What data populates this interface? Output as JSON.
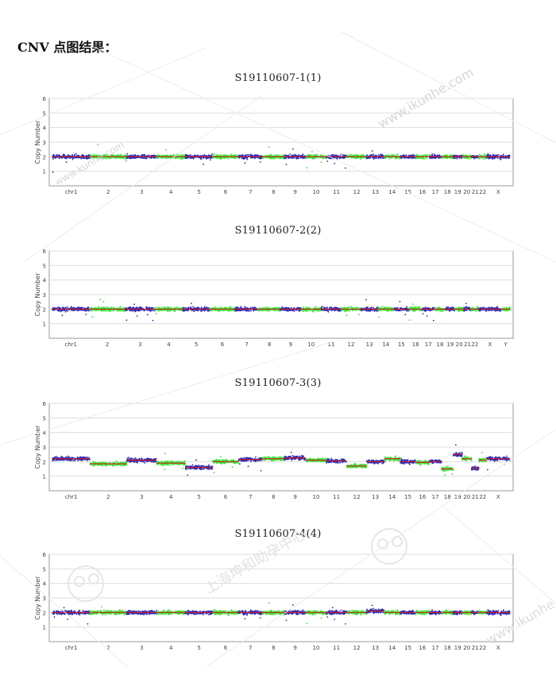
{
  "heading": "CNV 点图结果：",
  "watermark": {
    "texts": [
      "www.ikunhe.com",
      "上海坤和助孕中心",
      "www.ikunhe.com",
      "www.kunhe.com"
    ],
    "color": "#c8c8c8"
  },
  "colors": {
    "blue": "#2b2bb8",
    "green": "#33e833",
    "red": "#d81e1e",
    "grid": "#dddddd",
    "frame": "#999999"
  },
  "chart_data": [
    {
      "type": "scatter",
      "title": "S19110607-1(1)",
      "ylabel": "Copy Number",
      "ylim": [
        0,
        6
      ],
      "yticks": [
        1,
        2,
        3,
        4,
        5,
        6
      ],
      "chromosomes": [
        "chr1",
        "2",
        "3",
        "4",
        "5",
        "6",
        "7",
        "8",
        "9",
        "10",
        "11",
        "12",
        "13",
        "14",
        "15",
        "16",
        "17",
        "18",
        "19",
        "20",
        "21",
        "22",
        "X"
      ],
      "segments": [
        {
          "chr": "chr1",
          "value": 2.0,
          "color": "blue"
        },
        {
          "chr": "2",
          "value": 2.0,
          "color": "green"
        },
        {
          "chr": "3",
          "value": 2.0,
          "color": "blue"
        },
        {
          "chr": "4",
          "value": 2.0,
          "color": "green"
        },
        {
          "chr": "5",
          "value": 2.0,
          "color": "blue"
        },
        {
          "chr": "6",
          "value": 2.0,
          "color": "green"
        },
        {
          "chr": "7",
          "value": 2.0,
          "color": "blue"
        },
        {
          "chr": "8",
          "value": 2.0,
          "color": "green"
        },
        {
          "chr": "9",
          "value": 2.0,
          "color": "blue"
        },
        {
          "chr": "10",
          "value": 2.0,
          "color": "green"
        },
        {
          "chr": "11",
          "value": 2.0,
          "color": "blue"
        },
        {
          "chr": "12",
          "value": 2.0,
          "color": "green"
        },
        {
          "chr": "13",
          "value": 2.0,
          "color": "blue"
        },
        {
          "chr": "14",
          "value": 2.0,
          "color": "green"
        },
        {
          "chr": "15",
          "value": 2.0,
          "color": "blue"
        },
        {
          "chr": "16",
          "value": 2.0,
          "color": "green"
        },
        {
          "chr": "17",
          "value": 2.0,
          "color": "blue"
        },
        {
          "chr": "18",
          "value": 2.0,
          "color": "green"
        },
        {
          "chr": "19",
          "value": 2.0,
          "color": "blue"
        },
        {
          "chr": "20",
          "value": 2.0,
          "color": "green"
        },
        {
          "chr": "21",
          "value": 2.0,
          "color": "blue"
        },
        {
          "chr": "22",
          "value": 2.0,
          "color": "green"
        },
        {
          "chr": "X",
          "value": 2.0,
          "color": "blue"
        }
      ]
    },
    {
      "type": "scatter",
      "title": "S19110607-2(2)",
      "ylabel": "Copy Number",
      "ylim": [
        0,
        6
      ],
      "yticks": [
        1,
        2,
        3,
        4,
        5,
        6
      ],
      "chromosomes": [
        "chr1",
        "2",
        "3",
        "4",
        "5",
        "6",
        "7",
        "8",
        "9",
        "10",
        "11",
        "12",
        "13",
        "14",
        "15",
        "16",
        "17",
        "18",
        "19",
        "20",
        "21",
        "22",
        "X",
        "Y"
      ],
      "segments": [
        {
          "chr": "chr1",
          "value": 2.0,
          "color": "blue"
        },
        {
          "chr": "2",
          "value": 2.0,
          "color": "green"
        },
        {
          "chr": "3",
          "value": 2.0,
          "color": "blue"
        },
        {
          "chr": "4",
          "value": 2.0,
          "color": "green"
        },
        {
          "chr": "5",
          "value": 2.0,
          "color": "blue"
        },
        {
          "chr": "6",
          "value": 2.0,
          "color": "green"
        },
        {
          "chr": "7",
          "value": 2.0,
          "color": "blue"
        },
        {
          "chr": "8",
          "value": 2.0,
          "color": "green"
        },
        {
          "chr": "9",
          "value": 2.0,
          "color": "blue"
        },
        {
          "chr": "10",
          "value": 2.0,
          "color": "green"
        },
        {
          "chr": "11",
          "value": 2.0,
          "color": "blue"
        },
        {
          "chr": "12",
          "value": 2.0,
          "color": "green"
        },
        {
          "chr": "13",
          "value": 2.0,
          "color": "blue"
        },
        {
          "chr": "14",
          "value": 2.0,
          "color": "green"
        },
        {
          "chr": "15",
          "value": 2.0,
          "color": "blue"
        },
        {
          "chr": "16",
          "value": 2.0,
          "color": "green"
        },
        {
          "chr": "17",
          "value": 2.0,
          "color": "blue"
        },
        {
          "chr": "18",
          "value": 2.0,
          "color": "green"
        },
        {
          "chr": "19",
          "value": 2.0,
          "color": "blue"
        },
        {
          "chr": "20",
          "value": 2.0,
          "color": "green"
        },
        {
          "chr": "21",
          "value": 2.0,
          "color": "blue"
        },
        {
          "chr": "22",
          "value": 2.0,
          "color": "green"
        },
        {
          "chr": "X",
          "value": 2.0,
          "color": "blue"
        },
        {
          "chr": "Y",
          "value": 2.0,
          "color": "green"
        }
      ]
    },
    {
      "type": "scatter",
      "title": "S19110607-3(3)",
      "ylabel": "Copy Number",
      "ylim": [
        0,
        6
      ],
      "yticks": [
        1,
        2,
        3,
        4,
        5,
        6
      ],
      "chromosomes": [
        "chr1",
        "2",
        "3",
        "4",
        "5",
        "6",
        "7",
        "8",
        "9",
        "10",
        "11",
        "12",
        "13",
        "14",
        "15",
        "16",
        "17",
        "18",
        "19",
        "20",
        "21",
        "22",
        "X"
      ],
      "segments": [
        {
          "chr": "chr1",
          "value": 2.2,
          "color": "blue"
        },
        {
          "chr": "2",
          "value": 1.85,
          "color": "green"
        },
        {
          "chr": "3",
          "value": 2.1,
          "color": "blue"
        },
        {
          "chr": "4",
          "value": 1.9,
          "color": "green"
        },
        {
          "chr": "5",
          "value": 1.6,
          "color": "blue"
        },
        {
          "chr": "6",
          "value": 2.0,
          "color": "green"
        },
        {
          "chr": "7",
          "value": 2.15,
          "color": "blue"
        },
        {
          "chr": "8",
          "value": 2.2,
          "color": "green"
        },
        {
          "chr": "9",
          "value": 2.25,
          "color": "blue"
        },
        {
          "chr": "10",
          "value": 2.1,
          "color": "green"
        },
        {
          "chr": "11",
          "value": 2.05,
          "color": "blue"
        },
        {
          "chr": "12",
          "value": 1.7,
          "color": "green"
        },
        {
          "chr": "13",
          "value": 2.0,
          "color": "blue"
        },
        {
          "chr": "14",
          "value": 2.2,
          "color": "green"
        },
        {
          "chr": "15",
          "value": 2.0,
          "color": "blue"
        },
        {
          "chr": "16",
          "value": 1.95,
          "color": "green"
        },
        {
          "chr": "17",
          "value": 2.0,
          "color": "blue"
        },
        {
          "chr": "18",
          "value": 1.5,
          "color": "green"
        },
        {
          "chr": "19",
          "value": 2.5,
          "color": "blue"
        },
        {
          "chr": "20",
          "value": 2.2,
          "color": "green"
        },
        {
          "chr": "21",
          "value": 1.55,
          "color": "blue"
        },
        {
          "chr": "22",
          "value": 2.1,
          "color": "green"
        },
        {
          "chr": "X",
          "value": 2.2,
          "color": "blue"
        }
      ]
    },
    {
      "type": "scatter",
      "title": "S19110607-4(4)",
      "ylabel": "Copy Number",
      "ylim": [
        0,
        6
      ],
      "yticks": [
        1,
        2,
        3,
        4,
        5,
        6
      ],
      "chromosomes": [
        "chr1",
        "2",
        "3",
        "4",
        "5",
        "6",
        "7",
        "8",
        "9",
        "10",
        "11",
        "12",
        "13",
        "14",
        "15",
        "16",
        "17",
        "18",
        "19",
        "20",
        "21",
        "22",
        "X"
      ],
      "segments": [
        {
          "chr": "chr1",
          "value": 2.0,
          "color": "blue"
        },
        {
          "chr": "2",
          "value": 2.0,
          "color": "green"
        },
        {
          "chr": "3",
          "value": 2.0,
          "color": "blue"
        },
        {
          "chr": "4",
          "value": 2.0,
          "color": "green"
        },
        {
          "chr": "5",
          "value": 2.0,
          "color": "blue"
        },
        {
          "chr": "6",
          "value": 2.0,
          "color": "green"
        },
        {
          "chr": "7",
          "value": 2.0,
          "color": "blue"
        },
        {
          "chr": "8",
          "value": 2.0,
          "color": "green"
        },
        {
          "chr": "9",
          "value": 2.0,
          "color": "blue"
        },
        {
          "chr": "10",
          "value": 2.0,
          "color": "green"
        },
        {
          "chr": "11",
          "value": 2.0,
          "color": "blue"
        },
        {
          "chr": "12",
          "value": 2.0,
          "color": "green"
        },
        {
          "chr": "13",
          "value": 2.1,
          "color": "blue"
        },
        {
          "chr": "14",
          "value": 2.0,
          "color": "green"
        },
        {
          "chr": "15",
          "value": 2.0,
          "color": "blue"
        },
        {
          "chr": "16",
          "value": 2.0,
          "color": "green"
        },
        {
          "chr": "17",
          "value": 2.0,
          "color": "blue"
        },
        {
          "chr": "18",
          "value": 2.0,
          "color": "green"
        },
        {
          "chr": "19",
          "value": 2.0,
          "color": "blue"
        },
        {
          "chr": "20",
          "value": 2.0,
          "color": "green"
        },
        {
          "chr": "21",
          "value": 2.0,
          "color": "blue"
        },
        {
          "chr": "22",
          "value": 2.0,
          "color": "green"
        },
        {
          "chr": "X",
          "value": 2.0,
          "color": "blue"
        }
      ]
    }
  ]
}
